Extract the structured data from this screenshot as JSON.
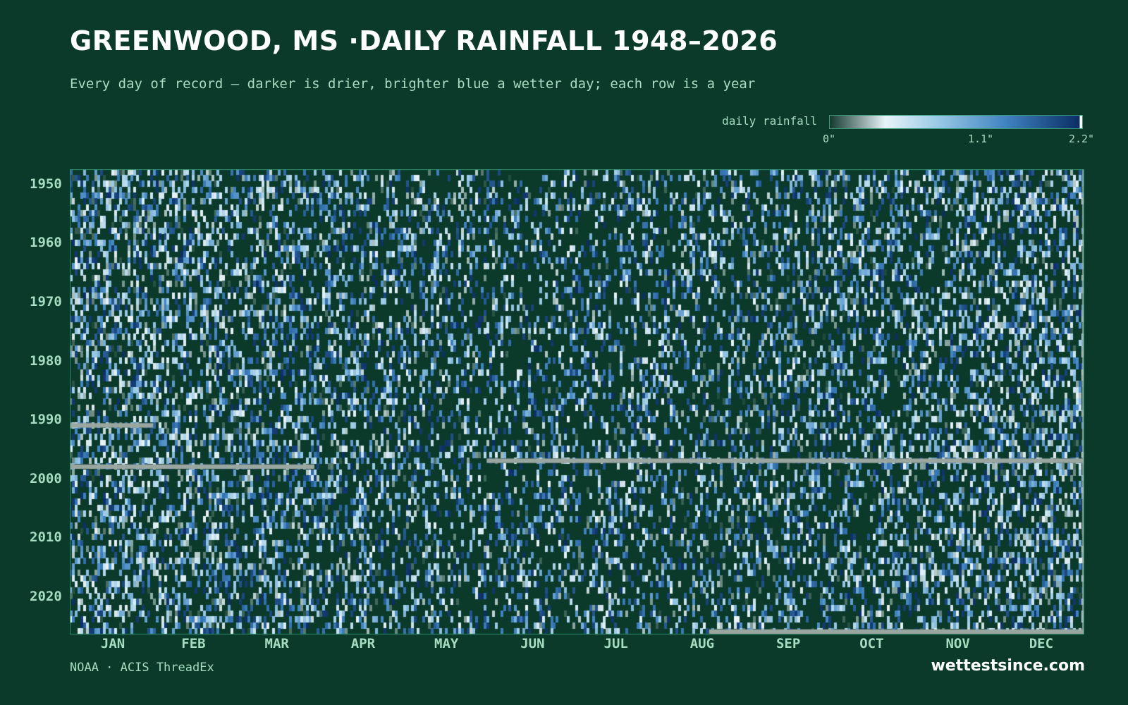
{
  "title": "GREENWOOD, MS ·DAILY RAINFALL 1948–2026",
  "subtitle": "Every day of record — darker is drier, brighter blue a wetter day; each row is a year",
  "legend": {
    "label": "daily rainfall",
    "ticks": [
      "0\"",
      "1.1\"",
      "2.2\""
    ],
    "min": 0,
    "max": 2.2
  },
  "source": "NOAA · ACIS ThreadEx",
  "site": "wettestsince.com",
  "colors": {
    "background": "#0b3a2b",
    "dry": "#0b3a2b",
    "light": "#e8f3f8",
    "mid": "#3f82c0",
    "wet": "#0b2e64",
    "missing": "#9aa6a0",
    "text_accent": "#a6dcc0"
  },
  "chart_data": {
    "type": "heatmap",
    "title": "GREENWOOD, MS ·DAILY RAINFALL 1948–2026",
    "xlabel": "",
    "ylabel": "",
    "year_range": [
      1948,
      2026
    ],
    "y_tick_labels": [
      "1950",
      "1960",
      "1970",
      "1980",
      "1990",
      "2000",
      "2010",
      "2020"
    ],
    "y_ticks": [
      1950,
      1960,
      1970,
      1980,
      1990,
      2000,
      2010,
      2020
    ],
    "x_tick_labels": [
      "JAN",
      "FEB",
      "MAR",
      "APR",
      "MAY",
      "JUN",
      "JUL",
      "AUG",
      "SEP",
      "OCT",
      "NOV",
      "DEC"
    ],
    "days_per_year": 365,
    "value_range": [
      0,
      2.2
    ],
    "missing_spans": [
      {
        "year": 1991,
        "start_day": 1,
        "end_day": 30
      },
      {
        "year": 1997,
        "start_day": 151,
        "end_day": 365
      },
      {
        "year": 1998,
        "start_day": 1,
        "end_day": 88
      },
      {
        "year": 2026,
        "start_day": 231,
        "end_day": 365
      }
    ],
    "grid": false,
    "legend_position": "top-right"
  }
}
